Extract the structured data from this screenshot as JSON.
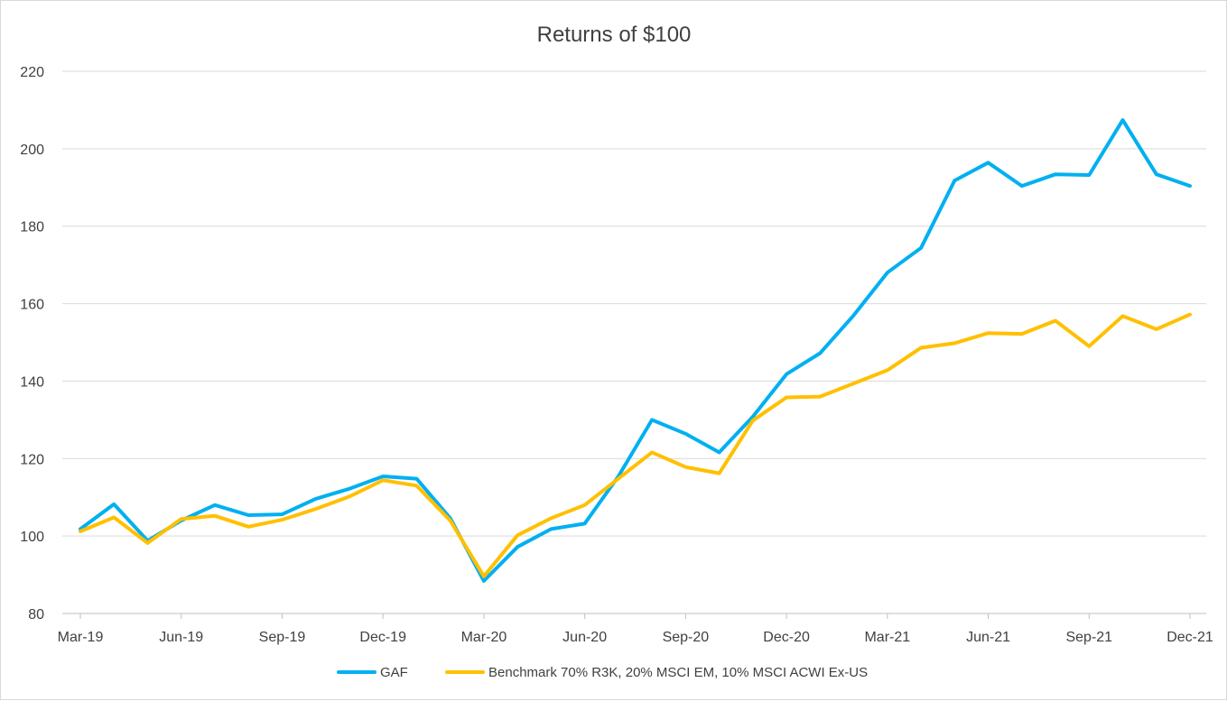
{
  "chart_data": {
    "type": "line",
    "title": "Returns of $100",
    "xlabel": "",
    "ylabel": "",
    "ylim": [
      80,
      220
    ],
    "yticks": [
      80,
      100,
      120,
      140,
      160,
      180,
      200,
      220
    ],
    "x": [
      "Mar-19",
      "Apr-19",
      "May-19",
      "Jun-19",
      "Jul-19",
      "Aug-19",
      "Sep-19",
      "Oct-19",
      "Nov-19",
      "Dec-19",
      "Jan-20",
      "Feb-20",
      "Mar-20",
      "Apr-20",
      "May-20",
      "Jun-20",
      "Jul-20",
      "Aug-20",
      "Sep-20",
      "Oct-20",
      "Nov-20",
      "Dec-20",
      "Jan-21",
      "Feb-21",
      "Mar-21",
      "Apr-21",
      "May-21",
      "Jun-21",
      "Jul-21",
      "Aug-21",
      "Sep-21",
      "Oct-21",
      "Nov-21",
      "Dec-21"
    ],
    "xtick_labels": [
      "Mar-19",
      "Jun-19",
      "Sep-19",
      "Dec-19",
      "Mar-20",
      "Jun-20",
      "Sep-20",
      "Dec-20",
      "Mar-21",
      "Jun-21",
      "Sep-21",
      "Dec-21"
    ],
    "grid": true,
    "legend_position": "bottom",
    "series": [
      {
        "name": "GAF",
        "color": "#00b0f0",
        "values": [
          101.8,
          108.2,
          98.8,
          104.0,
          108.0,
          105.4,
          105.6,
          109.6,
          112.2,
          115.4,
          114.8,
          104.6,
          88.4,
          97.2,
          101.8,
          103.2,
          115.4,
          130.0,
          126.4,
          121.6,
          130.8,
          141.8,
          147.2,
          157.0,
          168.0,
          174.4,
          191.8,
          196.4,
          190.4,
          193.4,
          193.2,
          207.4,
          193.4,
          190.4
        ]
      },
      {
        "name": "Benchmark 70% R3K, 20% MSCI EM, 10% MSCI ACWI Ex-US",
        "color": "#ffc000",
        "values": [
          101.2,
          104.8,
          98.2,
          104.4,
          105.2,
          102.4,
          104.2,
          107.0,
          110.2,
          114.4,
          113.0,
          104.0,
          89.6,
          100.2,
          104.6,
          108.0,
          114.8,
          121.6,
          117.8,
          116.2,
          129.8,
          135.8,
          136.0,
          139.4,
          142.8,
          148.6,
          149.8,
          152.4,
          152.2,
          155.6,
          149.0,
          156.8,
          153.4,
          157.2
        ]
      }
    ]
  }
}
